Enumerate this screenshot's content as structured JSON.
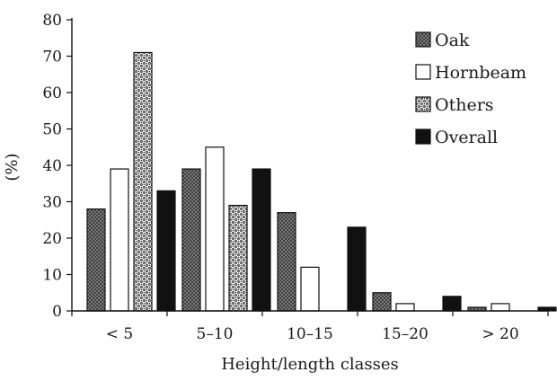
{
  "chart_data": {
    "type": "bar",
    "xlabel": "Height/length classes",
    "ylabel": "(%)",
    "ylim": [
      0,
      80
    ],
    "yticks": [
      0,
      10,
      20,
      30,
      40,
      50,
      60,
      70,
      80
    ],
    "categories": [
      "< 5",
      "5–10",
      "10–15",
      "15–20",
      "> 20"
    ],
    "legend_position": "top-right",
    "grid": false,
    "series": [
      {
        "name": "Oak",
        "pattern": "crosshatch-gray",
        "values": [
          28,
          39,
          27,
          5,
          1
        ]
      },
      {
        "name": "Hornbeam",
        "pattern": "white",
        "values": [
          39,
          45,
          12,
          2,
          2
        ]
      },
      {
        "name": "Others",
        "pattern": "checker-dotted",
        "values": [
          71,
          29,
          0,
          0,
          0
        ]
      },
      {
        "name": "Overall",
        "pattern": "black",
        "values": [
          33,
          39,
          23,
          4,
          1
        ]
      }
    ]
  }
}
